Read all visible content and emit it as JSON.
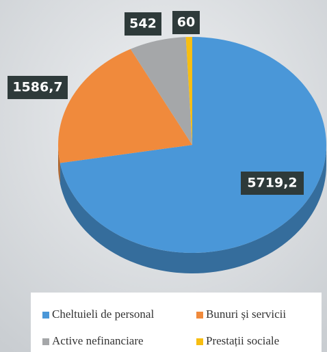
{
  "chart_data": {
    "type": "pie",
    "categories": [
      "Cheltuieli de personal",
      "Bunuri și servicii",
      "Active nefinanciare",
      "Prestații sociale"
    ],
    "values": [
      5719.2,
      1586.7,
      542,
      60
    ],
    "value_labels": [
      "5719,2",
      "1586,7",
      "542",
      "60"
    ],
    "colors": [
      "#4a97d8",
      "#f08a3c",
      "#a5a7a9",
      "#f7be12"
    ],
    "legend": "bottom"
  }
}
